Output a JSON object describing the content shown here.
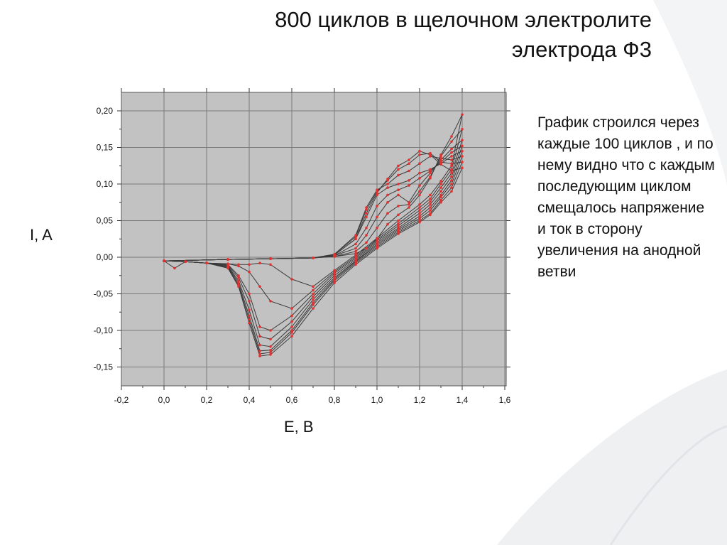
{
  "title_line1": "800 циклов в щелочном электролите",
  "title_line2": "электрода Ф3",
  "side_note": "График строился через каждые 100 циклов ,  и по нему видно что с каждым последующим циклом смещалось напряжение и ток в сторону увеличения на анодной ветви",
  "colors": {
    "plot_background": "#c2c2c2",
    "grid": "#7a7a7a",
    "line": "#3a3a3a",
    "marker": "#e53030"
  },
  "chart_data": {
    "type": "line",
    "title": "",
    "xlabel": "E, B",
    "ylabel": "I, A",
    "xlim": [
      -0.2,
      1.6
    ],
    "ylim": [
      -0.17,
      0.22
    ],
    "x_ticks": [
      "-0,2",
      "0,0",
      "0,2",
      "0,4",
      "0,6",
      "0,8",
      "1,0",
      "1,2",
      "1,4",
      "1,6"
    ],
    "y_ticks": [
      "0,20",
      "0,15",
      "0,10",
      "0,05",
      "0,00",
      "-0,05",
      "-0,10",
      "-0,15"
    ],
    "x_tick_values": [
      -0.2,
      0,
      0.2,
      0.4,
      0.6,
      0.8,
      1.0,
      1.2,
      1.4,
      1.6
    ],
    "y_tick_values": [
      0.2,
      0.15,
      0.1,
      0.05,
      0,
      -0.05,
      -0.1,
      -0.15
    ],
    "grid": true,
    "legend": "none",
    "series": [
      {
        "values": [
          [
            0,
            -0.005
          ],
          [
            0.3,
            -0.003
          ],
          [
            0.5,
            -0.002
          ],
          [
            0.7,
            -0.001
          ],
          [
            0.8,
            0.003
          ],
          [
            0.9,
            0.025
          ],
          [
            0.95,
            0.06
          ],
          [
            1.0,
            0.088
          ],
          [
            1.05,
            0.107
          ],
          [
            1.1,
            0.125
          ],
          [
            1.15,
            0.133
          ],
          [
            1.2,
            0.145
          ],
          [
            1.25,
            0.14
          ],
          [
            1.3,
            0.127
          ],
          [
            1.35,
            0.118
          ],
          [
            1.4,
            0.122
          ],
          [
            1.35,
            0.09
          ],
          [
            1.3,
            0.075
          ],
          [
            1.25,
            0.058
          ],
          [
            1.2,
            0.048
          ],
          [
            1.1,
            0.032
          ],
          [
            1.0,
            0.012
          ],
          [
            0.9,
            -0.01
          ],
          [
            0.8,
            -0.035
          ],
          [
            0.7,
            -0.07
          ],
          [
            0.6,
            -0.108
          ],
          [
            0.5,
            -0.133
          ],
          [
            0.45,
            -0.135
          ],
          [
            0.4,
            -0.09
          ],
          [
            0.35,
            -0.04
          ],
          [
            0.3,
            -0.015
          ],
          [
            0.2,
            -0.008
          ],
          [
            0.1,
            -0.006
          ],
          [
            0,
            -0.005
          ]
        ]
      },
      {
        "values": [
          [
            0,
            -0.005
          ],
          [
            0.3,
            -0.003
          ],
          [
            0.5,
            -0.002
          ],
          [
            0.7,
            -0.001
          ],
          [
            0.8,
            0.004
          ],
          [
            0.9,
            0.028
          ],
          [
            0.95,
            0.065
          ],
          [
            1.0,
            0.09
          ],
          [
            1.05,
            0.105
          ],
          [
            1.1,
            0.12
          ],
          [
            1.15,
            0.128
          ],
          [
            1.2,
            0.14
          ],
          [
            1.25,
            0.142
          ],
          [
            1.3,
            0.13
          ],
          [
            1.35,
            0.128
          ],
          [
            1.4,
            0.13
          ],
          [
            1.35,
            0.095
          ],
          [
            1.3,
            0.078
          ],
          [
            1.25,
            0.06
          ],
          [
            1.2,
            0.05
          ],
          [
            1.1,
            0.034
          ],
          [
            1.0,
            0.014
          ],
          [
            0.9,
            -0.008
          ],
          [
            0.8,
            -0.032
          ],
          [
            0.7,
            -0.065
          ],
          [
            0.6,
            -0.103
          ],
          [
            0.5,
            -0.13
          ],
          [
            0.45,
            -0.132
          ],
          [
            0.4,
            -0.085
          ],
          [
            0.35,
            -0.038
          ],
          [
            0.3,
            -0.014
          ],
          [
            0.2,
            -0.008
          ],
          [
            0.1,
            -0.006
          ],
          [
            0,
            -0.005
          ]
        ]
      },
      {
        "values": [
          [
            0,
            -0.005
          ],
          [
            0.3,
            -0.003
          ],
          [
            0.5,
            -0.002
          ],
          [
            0.7,
            -0.001
          ],
          [
            0.8,
            0.004
          ],
          [
            0.9,
            0.03
          ],
          [
            0.95,
            0.068
          ],
          [
            1.0,
            0.092
          ],
          [
            1.05,
            0.1
          ],
          [
            1.1,
            0.112
          ],
          [
            1.15,
            0.118
          ],
          [
            1.2,
            0.128
          ],
          [
            1.25,
            0.138
          ],
          [
            1.3,
            0.135
          ],
          [
            1.35,
            0.133
          ],
          [
            1.4,
            0.138
          ],
          [
            1.35,
            0.1
          ],
          [
            1.3,
            0.082
          ],
          [
            1.25,
            0.064
          ],
          [
            1.2,
            0.053
          ],
          [
            1.1,
            0.036
          ],
          [
            1.0,
            0.016
          ],
          [
            0.9,
            -0.006
          ],
          [
            0.8,
            -0.03
          ],
          [
            0.7,
            -0.062
          ],
          [
            0.6,
            -0.1
          ],
          [
            0.5,
            -0.127
          ],
          [
            0.45,
            -0.128
          ],
          [
            0.4,
            -0.08
          ],
          [
            0.35,
            -0.035
          ],
          [
            0.3,
            -0.013
          ],
          [
            0.2,
            -0.008
          ],
          [
            0.1,
            -0.006
          ],
          [
            0,
            -0.005
          ]
        ]
      },
      {
        "values": [
          [
            0,
            -0.005
          ],
          [
            0.3,
            -0.003
          ],
          [
            0.5,
            -0.002
          ],
          [
            0.7,
            -0.001
          ],
          [
            0.8,
            0.003
          ],
          [
            0.9,
            0.025
          ],
          [
            0.95,
            0.055
          ],
          [
            1.0,
            0.085
          ],
          [
            1.05,
            0.095
          ],
          [
            1.1,
            0.1
          ],
          [
            1.15,
            0.105
          ],
          [
            1.2,
            0.115
          ],
          [
            1.25,
            0.12
          ],
          [
            1.3,
            0.128
          ],
          [
            1.35,
            0.138
          ],
          [
            1.4,
            0.145
          ],
          [
            1.35,
            0.105
          ],
          [
            1.3,
            0.085
          ],
          [
            1.25,
            0.068
          ],
          [
            1.2,
            0.056
          ],
          [
            1.1,
            0.038
          ],
          [
            1.0,
            0.018
          ],
          [
            0.9,
            -0.005
          ],
          [
            0.8,
            -0.028
          ],
          [
            0.7,
            -0.058
          ],
          [
            0.6,
            -0.095
          ],
          [
            0.5,
            -0.122
          ],
          [
            0.45,
            -0.12
          ],
          [
            0.4,
            -0.072
          ],
          [
            0.35,
            -0.032
          ],
          [
            0.3,
            -0.012
          ],
          [
            0.2,
            -0.008
          ],
          [
            0.1,
            -0.006
          ],
          [
            0,
            -0.005
          ]
        ]
      },
      {
        "values": [
          [
            0,
            -0.005
          ],
          [
            0.3,
            -0.003
          ],
          [
            0.5,
            -0.002
          ],
          [
            0.7,
            -0.001
          ],
          [
            0.8,
            0.002
          ],
          [
            0.9,
            0.018
          ],
          [
            0.95,
            0.04
          ],
          [
            1.0,
            0.07
          ],
          [
            1.05,
            0.085
          ],
          [
            1.1,
            0.092
          ],
          [
            1.15,
            0.098
          ],
          [
            1.2,
            0.108
          ],
          [
            1.25,
            0.118
          ],
          [
            1.3,
            0.13
          ],
          [
            1.35,
            0.143
          ],
          [
            1.4,
            0.152
          ],
          [
            1.35,
            0.11
          ],
          [
            1.3,
            0.09
          ],
          [
            1.25,
            0.072
          ],
          [
            1.2,
            0.06
          ],
          [
            1.1,
            0.04
          ],
          [
            1.0,
            0.02
          ],
          [
            0.9,
            -0.003
          ],
          [
            0.8,
            -0.025
          ],
          [
            0.7,
            -0.054
          ],
          [
            0.6,
            -0.088
          ],
          [
            0.5,
            -0.112
          ],
          [
            0.45,
            -0.108
          ],
          [
            0.4,
            -0.06
          ],
          [
            0.35,
            -0.028
          ],
          [
            0.3,
            -0.011
          ],
          [
            0.2,
            -0.008
          ],
          [
            0.1,
            -0.006
          ],
          [
            0,
            -0.005
          ]
        ]
      },
      {
        "values": [
          [
            0,
            -0.005
          ],
          [
            0.3,
            -0.003
          ],
          [
            0.5,
            -0.002
          ],
          [
            0.7,
            -0.001
          ],
          [
            0.8,
            0.002
          ],
          [
            0.9,
            0.012
          ],
          [
            0.95,
            0.03
          ],
          [
            1.0,
            0.055
          ],
          [
            1.05,
            0.075
          ],
          [
            1.1,
            0.085
          ],
          [
            1.15,
            0.075
          ],
          [
            1.2,
            0.098
          ],
          [
            1.25,
            0.115
          ],
          [
            1.3,
            0.133
          ],
          [
            1.35,
            0.148
          ],
          [
            1.4,
            0.16
          ],
          [
            1.35,
            0.115
          ],
          [
            1.3,
            0.095
          ],
          [
            1.25,
            0.076
          ],
          [
            1.2,
            0.064
          ],
          [
            1.1,
            0.043
          ],
          [
            1.0,
            0.022
          ],
          [
            0.9,
            -0.001
          ],
          [
            0.8,
            -0.022
          ],
          [
            0.7,
            -0.05
          ],
          [
            0.6,
            -0.08
          ],
          [
            0.5,
            -0.1
          ],
          [
            0.45,
            -0.095
          ],
          [
            0.4,
            -0.05
          ],
          [
            0.35,
            -0.025
          ],
          [
            0.3,
            -0.01
          ],
          [
            0.2,
            -0.008
          ],
          [
            0.1,
            -0.006
          ],
          [
            0,
            -0.005
          ]
        ]
      },
      {
        "values": [
          [
            0,
            -0.005
          ],
          [
            0.3,
            -0.003
          ],
          [
            0.5,
            -0.002
          ],
          [
            0.7,
            -0.001
          ],
          [
            0.8,
            0.001
          ],
          [
            0.9,
            0.008
          ],
          [
            0.95,
            0.02
          ],
          [
            1.0,
            0.04
          ],
          [
            1.05,
            0.06
          ],
          [
            1.1,
            0.07
          ],
          [
            1.15,
            0.072
          ],
          [
            1.2,
            0.09
          ],
          [
            1.25,
            0.11
          ],
          [
            1.3,
            0.138
          ],
          [
            1.35,
            0.158
          ],
          [
            1.4,
            0.175
          ],
          [
            1.35,
            0.12
          ],
          [
            1.3,
            0.1
          ],
          [
            1.25,
            0.08
          ],
          [
            1.2,
            0.068
          ],
          [
            1.1,
            0.046
          ],
          [
            1.0,
            0.024
          ],
          [
            0.9,
            0.001
          ],
          [
            0.8,
            -0.02
          ],
          [
            0.7,
            -0.045
          ],
          [
            0.6,
            -0.07
          ],
          [
            0.5,
            -0.06
          ],
          [
            0.45,
            -0.04
          ],
          [
            0.4,
            -0.02
          ],
          [
            0.35,
            -0.012
          ],
          [
            0.3,
            -0.009
          ],
          [
            0.2,
            -0.008
          ],
          [
            0.1,
            -0.006
          ],
          [
            0,
            -0.005
          ]
        ]
      },
      {
        "values": [
          [
            0,
            -0.005
          ],
          [
            0.3,
            -0.003
          ],
          [
            0.5,
            -0.002
          ],
          [
            0.7,
            -0.001
          ],
          [
            0.8,
            0.001
          ],
          [
            0.9,
            0.005
          ],
          [
            0.95,
            0.012
          ],
          [
            1.0,
            0.025
          ],
          [
            1.05,
            0.045
          ],
          [
            1.1,
            0.058
          ],
          [
            1.15,
            0.068
          ],
          [
            1.2,
            0.085
          ],
          [
            1.25,
            0.108
          ],
          [
            1.3,
            0.14
          ],
          [
            1.35,
            0.165
          ],
          [
            1.4,
            0.195
          ],
          [
            1.35,
            0.125
          ],
          [
            1.3,
            0.104
          ],
          [
            1.25,
            0.085
          ],
          [
            1.2,
            0.072
          ],
          [
            1.1,
            0.05
          ],
          [
            1.0,
            0.026
          ],
          [
            0.9,
            0.003
          ],
          [
            0.8,
            -0.018
          ],
          [
            0.7,
            -0.04
          ],
          [
            0.6,
            -0.03
          ],
          [
            0.5,
            -0.01
          ],
          [
            0.45,
            -0.008
          ],
          [
            0.4,
            -0.01
          ],
          [
            0.35,
            -0.01
          ],
          [
            0.3,
            -0.009
          ],
          [
            0.2,
            -0.008
          ],
          [
            0.1,
            -0.006
          ],
          [
            0.05,
            -0.015
          ],
          [
            0,
            -0.005
          ]
        ]
      }
    ]
  }
}
